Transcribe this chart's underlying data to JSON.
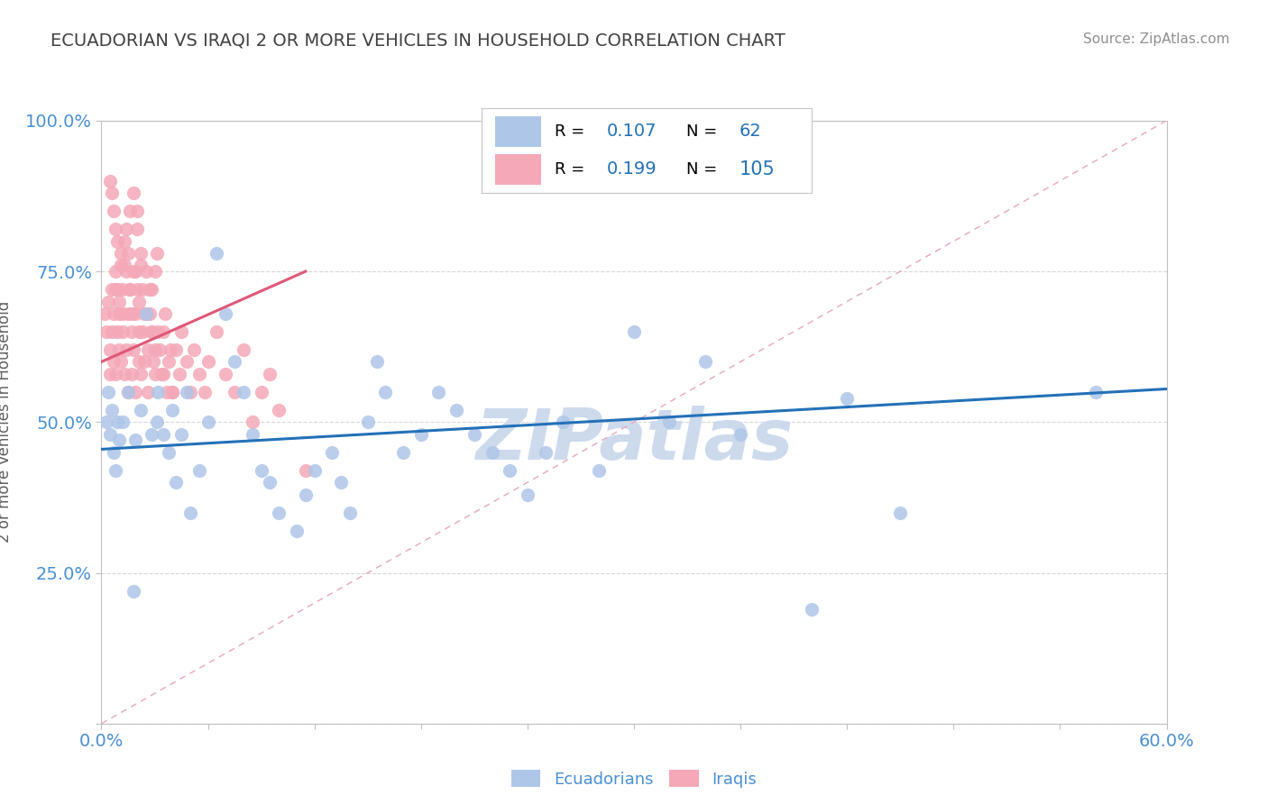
{
  "title": "ECUADORIAN VS IRAQI 2 OR MORE VEHICLES IN HOUSEHOLD CORRELATION CHART",
  "source_text": "Source: ZipAtlas.com",
  "ylabel": "2 or more Vehicles in Household",
  "xlim": [
    0.0,
    0.6
  ],
  "ylim": [
    0.0,
    1.0
  ],
  "yticks": [
    0.0,
    0.25,
    0.5,
    0.75,
    1.0
  ],
  "yticklabels": [
    "",
    "25.0%",
    "50.0%",
    "75.0%",
    "100.0%"
  ],
  "ecuadorian_R": "0.107",
  "ecuadorian_N": "62",
  "iraqi_R": "0.199",
  "iraqi_N": "105",
  "blue_scatter_color": "#aec6e8",
  "pink_scatter_color": "#f4a8b8",
  "blue_line_color": "#2471b8",
  "pink_line_color": "#e05878",
  "ref_line_color": "#e8b0b8",
  "grid_color": "#d8d8d8",
  "title_color": "#404040",
  "source_color": "#909090",
  "watermark_text": "ZIPatlas",
  "watermark_color": "#ccdaec",
  "tick_label_color": "#4a90d4",
  "legend_text_color": "#000000",
  "legend_value_color": "#2471b8",
  "blue_trend_x0": 0.0,
  "blue_trend_y0": 0.455,
  "blue_trend_x1": 0.6,
  "blue_trend_y1": 0.555,
  "pink_trend_x0": 0.0,
  "pink_trend_y0": 0.6,
  "pink_trend_x1": 0.115,
  "pink_trend_y1": 0.75,
  "ecuadorian_x": [
    0.003,
    0.004,
    0.005,
    0.006,
    0.007,
    0.008,
    0.009,
    0.01,
    0.012,
    0.015,
    0.018,
    0.019,
    0.022,
    0.025,
    0.028,
    0.031,
    0.032,
    0.035,
    0.038,
    0.04,
    0.042,
    0.045,
    0.048,
    0.05,
    0.055,
    0.06,
    0.065,
    0.07,
    0.075,
    0.08,
    0.085,
    0.09,
    0.095,
    0.1,
    0.11,
    0.115,
    0.12,
    0.13,
    0.135,
    0.14,
    0.15,
    0.155,
    0.16,
    0.17,
    0.18,
    0.19,
    0.2,
    0.21,
    0.22,
    0.23,
    0.24,
    0.25,
    0.26,
    0.28,
    0.3,
    0.32,
    0.34,
    0.36,
    0.4,
    0.42,
    0.45,
    0.56
  ],
  "ecuadorian_y": [
    0.5,
    0.55,
    0.48,
    0.52,
    0.45,
    0.42,
    0.5,
    0.47,
    0.5,
    0.55,
    0.22,
    0.47,
    0.52,
    0.68,
    0.48,
    0.5,
    0.55,
    0.48,
    0.45,
    0.52,
    0.4,
    0.48,
    0.55,
    0.35,
    0.42,
    0.5,
    0.78,
    0.68,
    0.6,
    0.55,
    0.48,
    0.42,
    0.4,
    0.35,
    0.32,
    0.38,
    0.42,
    0.45,
    0.4,
    0.35,
    0.5,
    0.6,
    0.55,
    0.45,
    0.48,
    0.55,
    0.52,
    0.48,
    0.45,
    0.42,
    0.38,
    0.45,
    0.5,
    0.42,
    0.65,
    0.5,
    0.6,
    0.48,
    0.19,
    0.54,
    0.35,
    0.55
  ],
  "iraqi_x": [
    0.002,
    0.003,
    0.004,
    0.005,
    0.005,
    0.006,
    0.006,
    0.007,
    0.007,
    0.008,
    0.008,
    0.008,
    0.009,
    0.009,
    0.01,
    0.01,
    0.011,
    0.011,
    0.012,
    0.012,
    0.013,
    0.013,
    0.014,
    0.014,
    0.015,
    0.015,
    0.016,
    0.016,
    0.017,
    0.017,
    0.018,
    0.018,
    0.019,
    0.019,
    0.02,
    0.02,
    0.021,
    0.021,
    0.022,
    0.022,
    0.023,
    0.023,
    0.024,
    0.025,
    0.025,
    0.026,
    0.026,
    0.027,
    0.028,
    0.028,
    0.029,
    0.03,
    0.03,
    0.031,
    0.032,
    0.033,
    0.034,
    0.035,
    0.036,
    0.037,
    0.038,
    0.039,
    0.04,
    0.042,
    0.044,
    0.045,
    0.048,
    0.05,
    0.052,
    0.055,
    0.058,
    0.06,
    0.065,
    0.07,
    0.075,
    0.08,
    0.085,
    0.09,
    0.095,
    0.1,
    0.005,
    0.006,
    0.007,
    0.008,
    0.009,
    0.01,
    0.011,
    0.012,
    0.013,
    0.014,
    0.015,
    0.016,
    0.017,
    0.018,
    0.019,
    0.02,
    0.021,
    0.022,
    0.024,
    0.027,
    0.028,
    0.03,
    0.035,
    0.04,
    0.115
  ],
  "iraqi_y": [
    0.68,
    0.65,
    0.7,
    0.62,
    0.58,
    0.72,
    0.65,
    0.68,
    0.6,
    0.75,
    0.58,
    0.82,
    0.72,
    0.65,
    0.68,
    0.62,
    0.78,
    0.6,
    0.72,
    0.65,
    0.58,
    0.8,
    0.62,
    0.75,
    0.68,
    0.55,
    0.72,
    0.85,
    0.65,
    0.58,
    0.62,
    0.75,
    0.68,
    0.55,
    0.72,
    0.85,
    0.6,
    0.65,
    0.78,
    0.58,
    0.65,
    0.72,
    0.6,
    0.68,
    0.75,
    0.55,
    0.62,
    0.68,
    0.72,
    0.65,
    0.6,
    0.75,
    0.58,
    0.78,
    0.65,
    0.62,
    0.58,
    0.65,
    0.68,
    0.55,
    0.6,
    0.62,
    0.55,
    0.62,
    0.58,
    0.65,
    0.6,
    0.55,
    0.62,
    0.58,
    0.55,
    0.6,
    0.65,
    0.58,
    0.55,
    0.62,
    0.5,
    0.55,
    0.58,
    0.52,
    0.9,
    0.88,
    0.85,
    0.72,
    0.8,
    0.7,
    0.76,
    0.68,
    0.76,
    0.82,
    0.78,
    0.72,
    0.68,
    0.88,
    0.75,
    0.82,
    0.7,
    0.76,
    0.68,
    0.72,
    0.65,
    0.62,
    0.58,
    0.55,
    0.42
  ]
}
